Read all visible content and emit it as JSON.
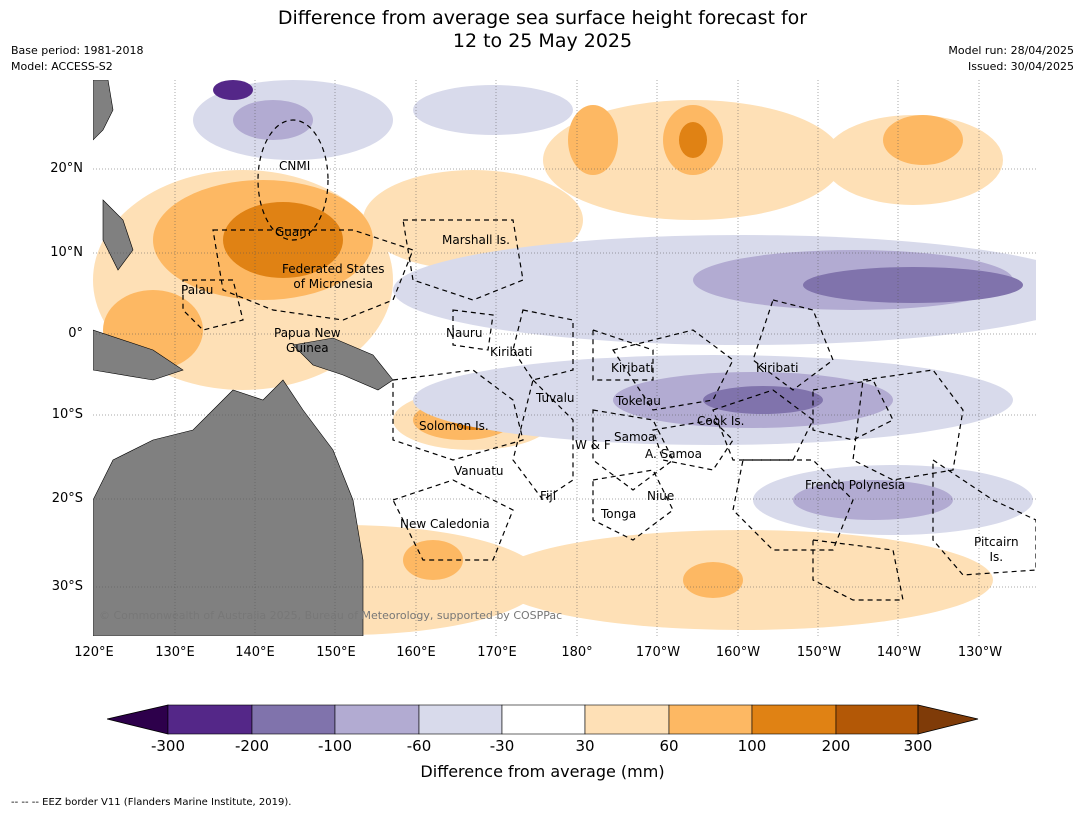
{
  "header": {
    "title_line1": "Difference from average sea surface height forecast for",
    "title_line2": "12 to 25 May 2025",
    "base_period": "Base period: 1981-2018",
    "model": "Model: ACCESS-S2",
    "model_run": "Model run: 28/04/2025",
    "issued": "Issued: 30/04/2025"
  },
  "map": {
    "lat_labels": [
      "20°N",
      "10°N",
      "0°",
      "10°S",
      "20°S",
      "30°S"
    ],
    "lon_labels": [
      "120°E",
      "130°E",
      "140°E",
      "150°E",
      "160°E",
      "170°E",
      "180°",
      "170°W",
      "160°W",
      "150°W",
      "140°W",
      "130°W"
    ],
    "regions": {
      "cnmi": "CNMI",
      "guam": "Guam",
      "marshall": "Marshall Is.",
      "fsm_line1": "Federated States",
      "fsm_line2": "of Micronesia",
      "palau": "Palau",
      "png_line1": "Papua New",
      "png_line2": "Guinea",
      "nauru": "Nauru",
      "kiribati_w": "Kiribati",
      "kiribati_c": "Kiribati",
      "kiribati_e": "Kiribati",
      "tuvalu": "Tuvalu",
      "tokelau": "Tokelau",
      "cook": "Cook Is.",
      "solomon": "Solomon Is.",
      "samoa": "Samoa",
      "wf": "W & F",
      "asamoa": "A. Samoa",
      "vanuatu": "Vanuatu",
      "fiji": "Fiji",
      "niue": "Niue",
      "fp": "French Polynesia",
      "tonga": "Tonga",
      "newcal": "New Caledonia",
      "pitcairn_line1": "Pitcairn",
      "pitcairn_line2": "Is."
    },
    "copyright": "© Commonwealth of Australia 2025, Bureau of Meteorology, supported by COSPPac",
    "land_color": "#808080"
  },
  "colorbar": {
    "ticks": [
      "-300",
      "-200",
      "-100",
      "-60",
      "-30",
      "30",
      "60",
      "100",
      "200",
      "300"
    ],
    "colors": [
      "#2d004b",
      "#542788",
      "#8073ac",
      "#b2abd2",
      "#d8daeb",
      "#ffffff",
      "#fee0b6",
      "#fdb863",
      "#e08214",
      "#b35806",
      "#7f3b08"
    ],
    "title": "Difference from average (mm)"
  },
  "footer": {
    "eez_note": "--  --  -- EEZ border V11 (Flanders Marine Institute, 2019)."
  }
}
